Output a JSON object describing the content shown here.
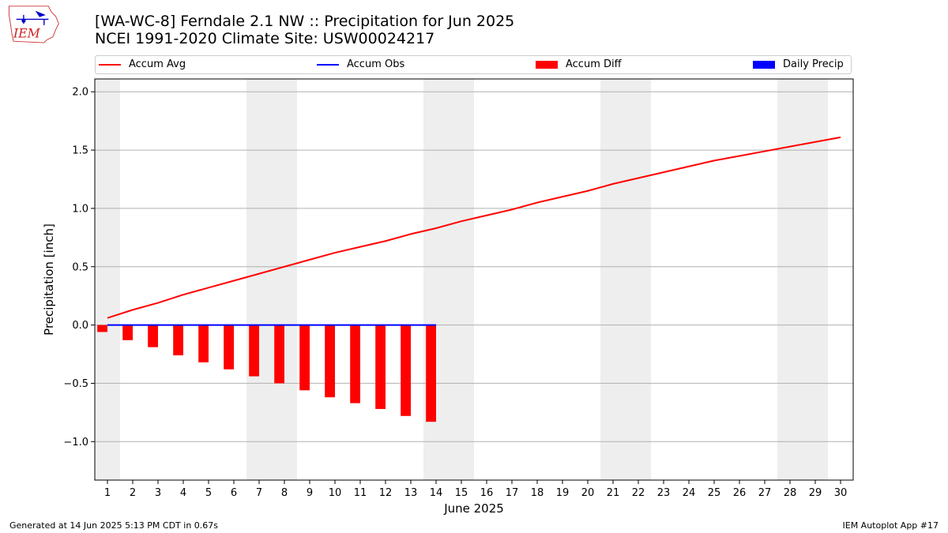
{
  "header": {
    "title_line1": "[WA-WC-8] Ferndale 2.1 NW :: Precipitation for Jun 2025",
    "title_line2": "NCEI 1991-2020 Climate Site: USW00024217",
    "logo_text": "IEM"
  },
  "footer": {
    "generated": "Generated at 14 Jun 2025 5:13 PM CDT in 0.67s",
    "app": "IEM Autoplot App #17"
  },
  "legend": {
    "position": "top",
    "items": [
      {
        "label": "Accum Avg",
        "kind": "line",
        "color": "#ff0000"
      },
      {
        "label": "Accum Obs",
        "kind": "line",
        "color": "#0000ff"
      },
      {
        "label": "Accum Diff",
        "kind": "bar",
        "color": "#ff0000"
      },
      {
        "label": "Daily Precip",
        "kind": "bar",
        "color": "#0000ff"
      }
    ]
  },
  "chart_data": {
    "type": "bar",
    "xlabel": "June 2025",
    "ylabel": "Precipitation [inch]",
    "xlim": [
      0.5,
      30.5
    ],
    "ylim": [
      -1.33,
      2.11
    ],
    "yticks": [
      -1.0,
      -0.5,
      0.0,
      0.5,
      1.0,
      1.5,
      2.0
    ],
    "ytick_labels": [
      "−1.0",
      "−0.5",
      "0.0",
      "0.5",
      "1.0",
      "1.5",
      "2.0"
    ],
    "x": [
      1,
      2,
      3,
      4,
      5,
      6,
      7,
      8,
      9,
      10,
      11,
      12,
      13,
      14,
      15,
      16,
      17,
      18,
      19,
      20,
      21,
      22,
      23,
      24,
      25,
      26,
      27,
      28,
      29,
      30
    ],
    "grid": "horizontal",
    "weekend_shading": [
      [
        0.5,
        1.5
      ],
      [
        6.5,
        8.5
      ],
      [
        13.5,
        15.5
      ],
      [
        20.5,
        22.5
      ],
      [
        27.5,
        29.5
      ]
    ],
    "series": [
      {
        "name": "Accum Avg",
        "type": "line",
        "color": "#ff0000",
        "x": [
          1,
          2,
          3,
          4,
          5,
          6,
          7,
          8,
          9,
          10,
          11,
          12,
          13,
          14,
          15,
          16,
          17,
          18,
          19,
          20,
          21,
          22,
          23,
          24,
          25,
          26,
          27,
          28,
          29,
          30
        ],
        "values": [
          0.06,
          0.13,
          0.19,
          0.26,
          0.32,
          0.38,
          0.44,
          0.5,
          0.56,
          0.62,
          0.67,
          0.72,
          0.78,
          0.83,
          0.89,
          0.94,
          0.99,
          1.05,
          1.1,
          1.15,
          1.21,
          1.26,
          1.31,
          1.36,
          1.41,
          1.45,
          1.49,
          1.53,
          1.57,
          1.61
        ]
      },
      {
        "name": "Accum Obs",
        "type": "line",
        "color": "#0000ff",
        "x": [
          1,
          2,
          3,
          4,
          5,
          6,
          7,
          8,
          9,
          10,
          11,
          12,
          13,
          14
        ],
        "values": [
          0,
          0,
          0,
          0,
          0,
          0,
          0,
          0,
          0,
          0,
          0,
          0,
          0,
          0
        ]
      },
      {
        "name": "Accum Diff",
        "type": "bar",
        "color": "#ff0000",
        "x": [
          1,
          2,
          3,
          4,
          5,
          6,
          7,
          8,
          9,
          10,
          11,
          12,
          13,
          14
        ],
        "values": [
          -0.06,
          -0.13,
          -0.19,
          -0.26,
          -0.32,
          -0.38,
          -0.44,
          -0.5,
          -0.56,
          -0.62,
          -0.67,
          -0.72,
          -0.78,
          -0.83
        ]
      },
      {
        "name": "Daily Precip",
        "type": "bar",
        "color": "#0000ff",
        "x": [
          1,
          2,
          3,
          4,
          5,
          6,
          7,
          8,
          9,
          10,
          11,
          12,
          13,
          14
        ],
        "values": [
          0,
          0,
          0,
          0,
          0,
          0,
          0,
          0,
          0,
          0,
          0,
          0,
          0,
          0
        ]
      }
    ]
  }
}
